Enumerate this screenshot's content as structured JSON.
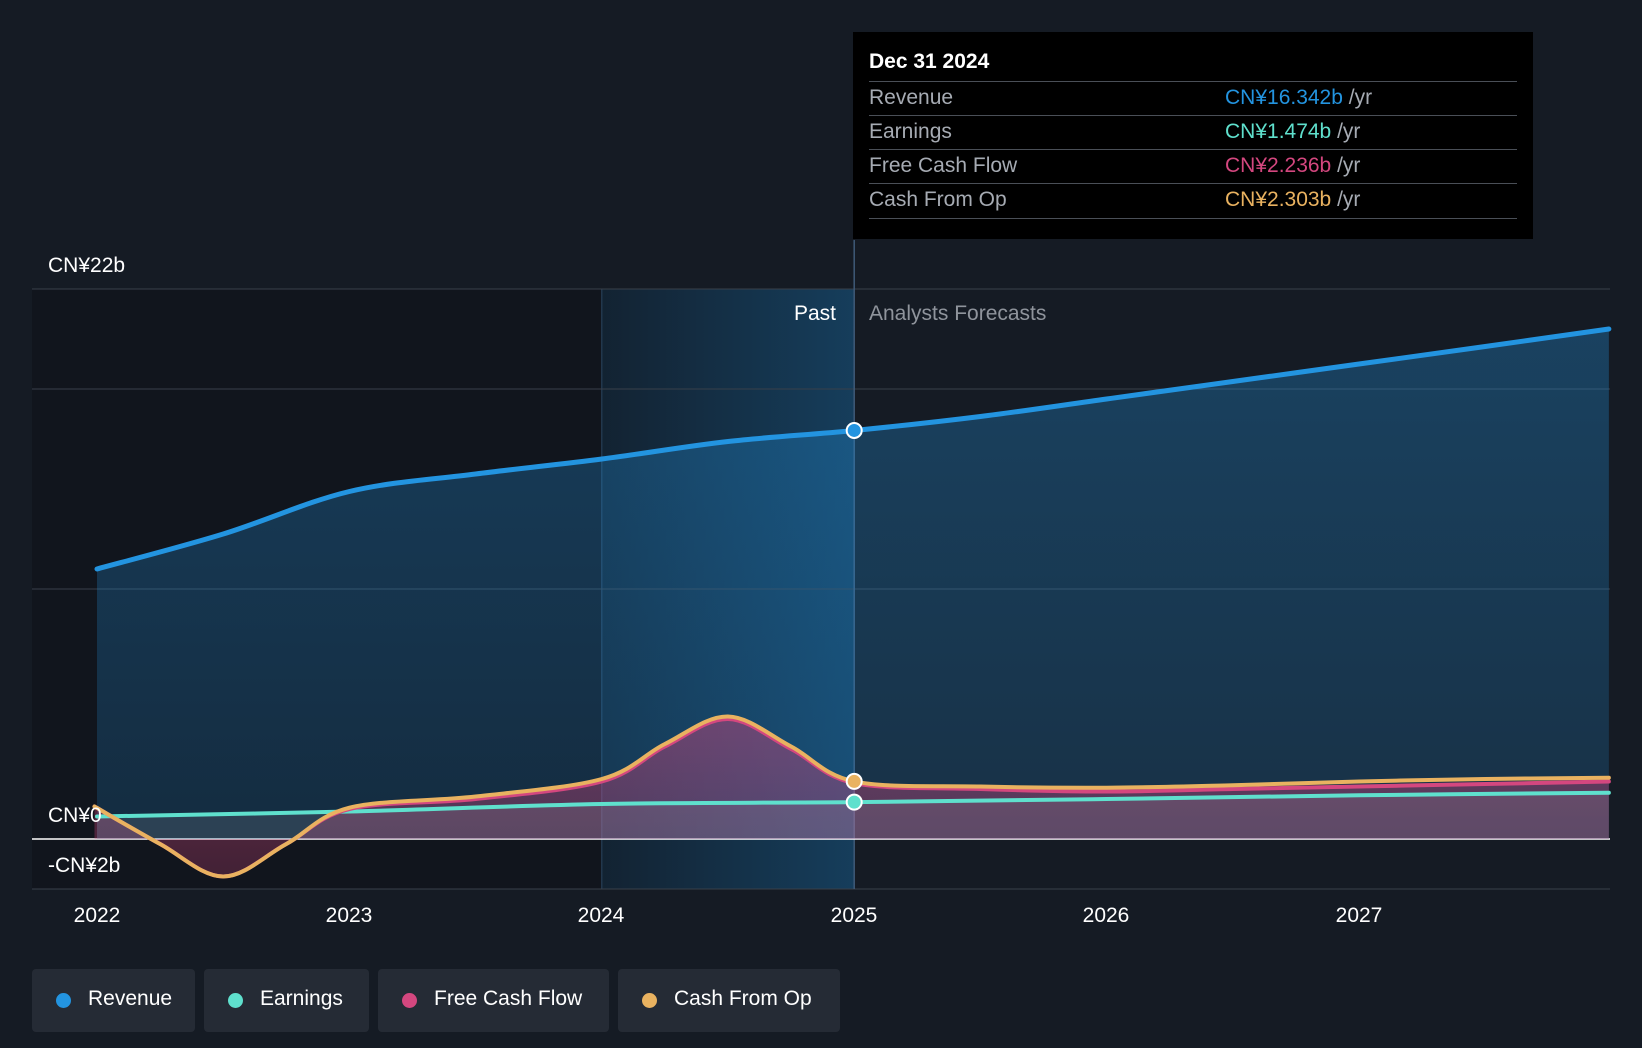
{
  "colors": {
    "revenue": "#2394e0",
    "earnings": "#5fe0cd",
    "free_cash_flow": "#d4477f",
    "cash_from_op": "#e9b260",
    "background": "#151b24"
  },
  "tooltip": {
    "date": "Dec 31 2024",
    "rows": [
      {
        "name": "Revenue",
        "value": "CN¥16.342b",
        "unit": " /yr",
        "color": "#2394e0"
      },
      {
        "name": "Earnings",
        "value": "CN¥1.474b",
        "unit": " /yr",
        "color": "#5fe0cd"
      },
      {
        "name": "Free Cash Flow",
        "value": "CN¥2.236b",
        "unit": " /yr",
        "color": "#d4477f"
      },
      {
        "name": "Cash From Op",
        "value": "CN¥2.303b",
        "unit": " /yr",
        "color": "#e9b260"
      }
    ]
  },
  "chart_data": {
    "type": "line",
    "title": "",
    "xlabel": "",
    "ylabel": "",
    "ylim": [
      -2,
      22
    ],
    "xlim": [
      2021.75,
      2027.99
    ],
    "x_ticks": [
      2022,
      2023,
      2024,
      2025,
      2026,
      2027
    ],
    "x_tick_labels": [
      "2022",
      "2023",
      "2024",
      "2025",
      "2026",
      "2027"
    ],
    "y_tick_labels": [
      {
        "value": 22,
        "label": "CN¥22b"
      },
      {
        "value": 0,
        "label": "CN¥0"
      },
      {
        "value": -2,
        "label": "-CN¥2b"
      }
    ],
    "gridlines": [
      22,
      18,
      10
    ],
    "past_label": "Past",
    "forecast_label": "Analysts Forecasts",
    "divider_x": 2025.0,
    "highlight_x": [
      2024.0,
      2025.0
    ],
    "series": [
      {
        "name": "Revenue",
        "key": "revenue",
        "area": true,
        "x": [
          2022.0,
          2022.5,
          2023.0,
          2023.5,
          2024.0,
          2024.5,
          2025.0,
          2025.5,
          2026.0,
          2026.5,
          2027.0,
          2027.5,
          2027.99
        ],
        "y": [
          10.8,
          12.2,
          13.9,
          14.6,
          15.2,
          15.9,
          16.342,
          16.9,
          17.6,
          18.3,
          19.0,
          19.7,
          20.4
        ]
      },
      {
        "name": "Earnings",
        "key": "earnings",
        "area": false,
        "x": [
          2022.0,
          2023.0,
          2024.0,
          2025.0,
          2026.0,
          2027.0,
          2027.99
        ],
        "y": [
          0.9,
          1.1,
          1.4,
          1.474,
          1.6,
          1.75,
          1.85
        ]
      },
      {
        "name": "Free Cash Flow",
        "key": "free_cash_flow",
        "area": true,
        "x": [
          2021.99,
          2022.25,
          2022.5,
          2022.75,
          2023.0,
          2023.5,
          2024.0,
          2024.25,
          2024.5,
          2024.75,
          2025.0,
          2025.5,
          2026.0,
          2026.5,
          2027.0,
          2027.5,
          2027.99
        ],
        "y": [
          1.3,
          -0.2,
          -1.5,
          -0.2,
          1.2,
          1.6,
          2.3,
          3.7,
          4.8,
          3.6,
          2.236,
          2.0,
          1.9,
          2.0,
          2.1,
          2.2,
          2.3
        ]
      },
      {
        "name": "Cash From Op",
        "key": "cash_from_op",
        "area": false,
        "x": [
          2021.99,
          2022.25,
          2022.5,
          2022.75,
          2023.0,
          2023.5,
          2024.0,
          2024.25,
          2024.5,
          2024.75,
          2025.0,
          2025.5,
          2026.0,
          2026.5,
          2027.0,
          2027.5,
          2027.99
        ],
        "y": [
          1.3,
          -0.2,
          -1.5,
          -0.2,
          1.25,
          1.7,
          2.4,
          3.8,
          4.9,
          3.7,
          2.303,
          2.1,
          2.05,
          2.15,
          2.3,
          2.4,
          2.45
        ]
      }
    ],
    "markers": [
      {
        "series": "revenue",
        "x": 2025.0,
        "y": 16.342
      },
      {
        "series": "cash_from_op",
        "x": 2025.0,
        "y": 2.303
      },
      {
        "series": "earnings",
        "x": 2025.0,
        "y": 1.474
      }
    ],
    "legend": {
      "position": "bottom-left",
      "items": [
        {
          "label": "Revenue",
          "key": "revenue"
        },
        {
          "label": "Earnings",
          "key": "earnings"
        },
        {
          "label": "Free Cash Flow",
          "key": "free_cash_flow"
        },
        {
          "label": "Cash From Op",
          "key": "cash_from_op"
        }
      ]
    }
  }
}
